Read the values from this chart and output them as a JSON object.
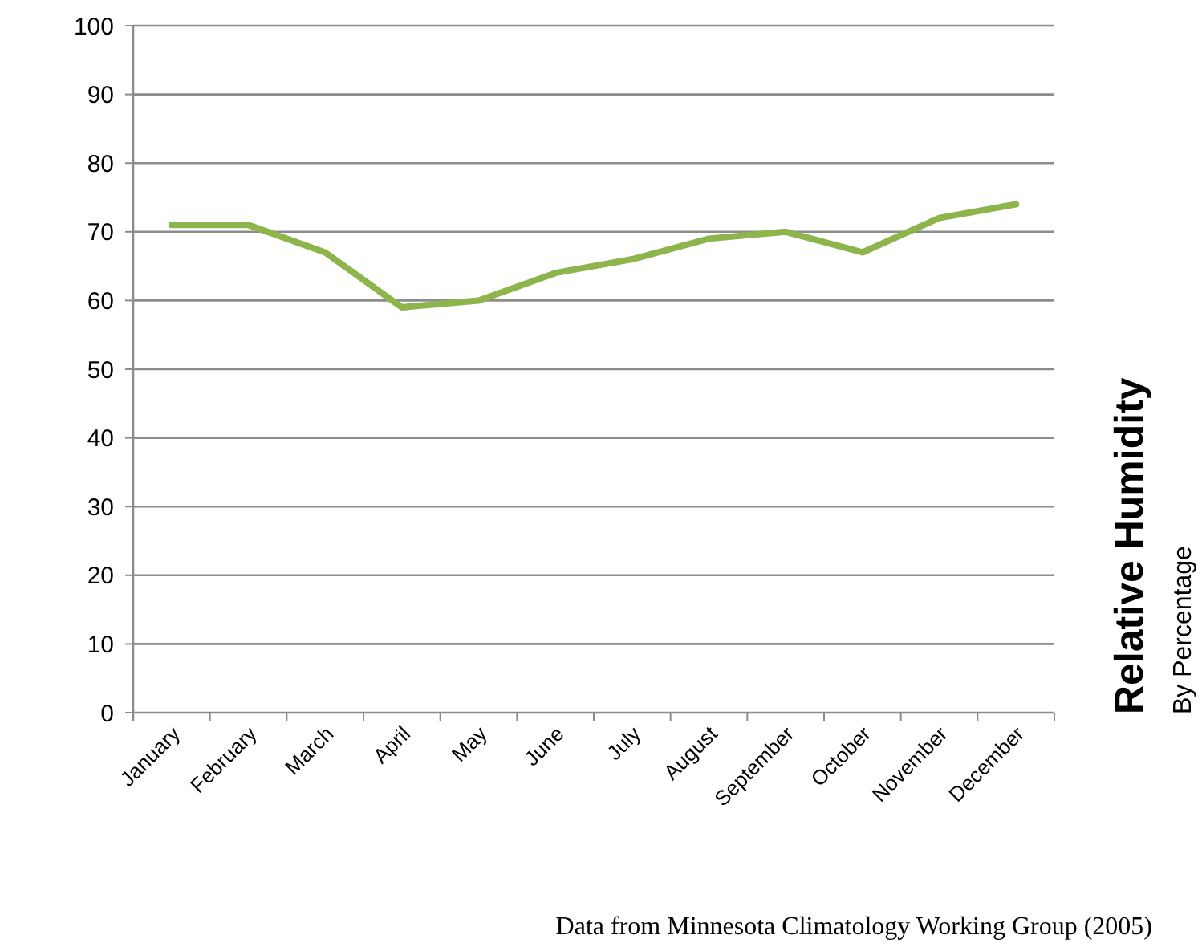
{
  "chart_data": {
    "type": "line",
    "title": "Relative Humidity",
    "subtitle": "By Percentage",
    "annotations": [
      "Data from Minnesota Climatology Working Group (2005)"
    ],
    "categories": [
      "January",
      "February",
      "March",
      "April",
      "May",
      "June",
      "July",
      "August",
      "September",
      "October",
      "November",
      "December"
    ],
    "series": [
      {
        "color": "#8db54b",
        "values": [
          71,
          71,
          67,
          59,
          60,
          64,
          66,
          69,
          70,
          67,
          72,
          74
        ]
      }
    ],
    "ylim": [
      0,
      100
    ],
    "yticks": [
      0,
      10,
      20,
      30,
      40,
      50,
      60,
      70,
      80,
      90,
      100
    ],
    "grid": "y",
    "marker": "none",
    "line_style": "solid"
  }
}
